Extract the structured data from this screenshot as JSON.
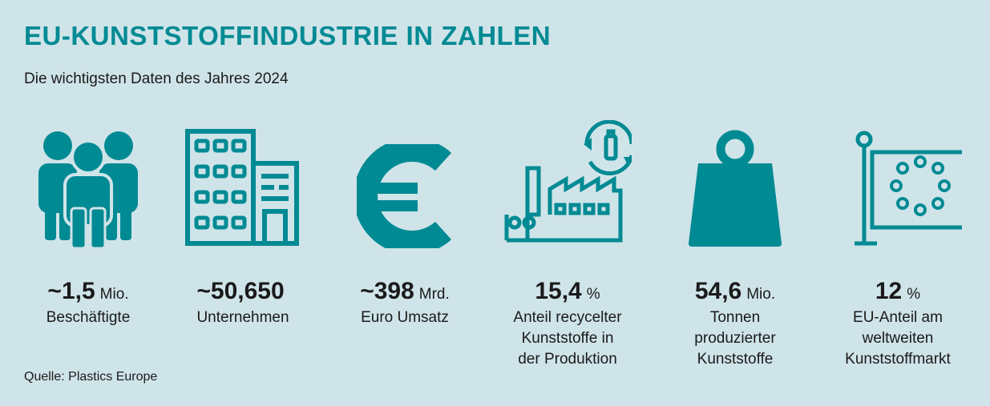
{
  "title": "EU-KUNSTSTOFFINDUSTRIE IN ZAHLEN",
  "subtitle": "Die wichtigsten Daten des Jahres 2024",
  "accent_color": "#008a93",
  "background_color": "#cfe4e9",
  "stats": [
    {
      "icon": "people-icon",
      "value": "~1,5",
      "unit": "Mio.",
      "label_lines": [
        "Beschäftigte"
      ]
    },
    {
      "icon": "building-icon",
      "value": "~50,650",
      "unit": "",
      "label_lines": [
        "Unternehmen"
      ]
    },
    {
      "icon": "euro-icon",
      "value": "~398",
      "unit": "Mrd.",
      "label_lines": [
        "Euro Umsatz"
      ]
    },
    {
      "icon": "factory-recycle-icon",
      "value": "15,4",
      "unit": "%",
      "label_lines": [
        "Anteil recycelter",
        "Kunststoffe in",
        "der Produktion"
      ]
    },
    {
      "icon": "weight-icon",
      "value": "54,6",
      "unit": "Mio.",
      "label_lines": [
        "Tonnen",
        "produzierter",
        "Kunststoffe"
      ]
    },
    {
      "icon": "eu-flag-icon",
      "value": "12",
      "unit": "%",
      "label_lines": [
        "EU-Anteil am",
        "weltweiten",
        "Kunststoffmarkt"
      ]
    }
  ],
  "source": "Quelle: Plastics Europe"
}
